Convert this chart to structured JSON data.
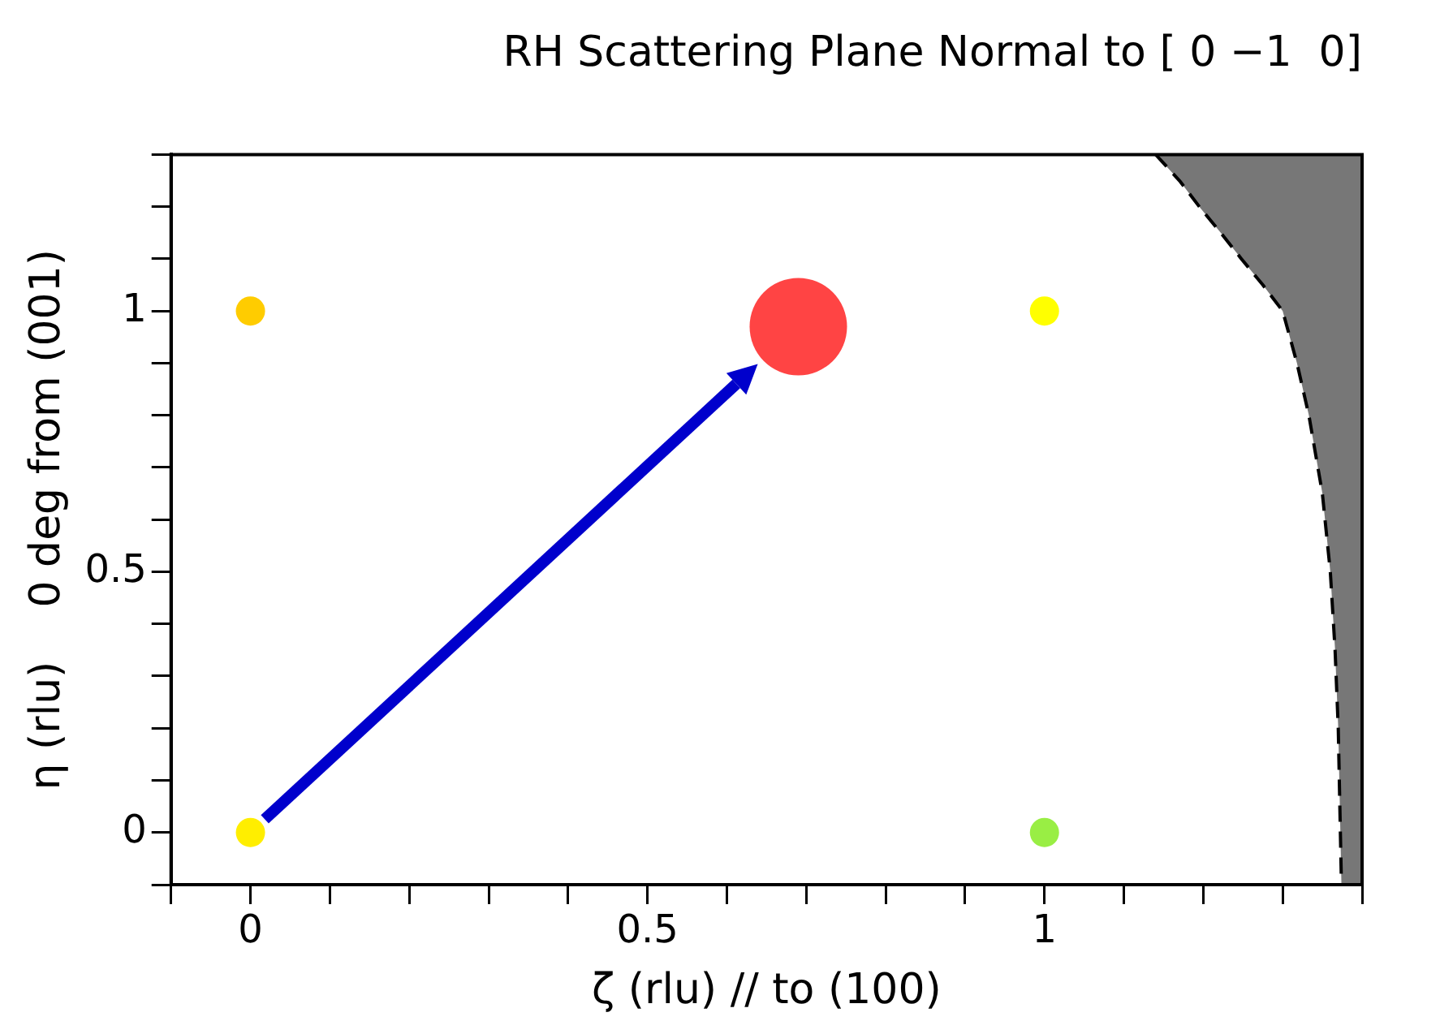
{
  "chart_data": {
    "type": "scatter",
    "title": "RH Scattering Plane Normal to [ 0 −1  0]",
    "xlabel": "ζ (rlu) // to (100)",
    "ylabel": "η (rlu)    0 deg from (001)",
    "xlim": [
      -0.1,
      1.4
    ],
    "ylim": [
      -0.1,
      1.3
    ],
    "xticks": [
      {
        "value": -0.1,
        "label": null
      },
      0,
      {
        "value": 0.1,
        "label": null
      },
      {
        "value": 0.2,
        "label": null
      },
      {
        "value": 0.3,
        "label": null
      },
      {
        "value": 0.4,
        "label": null
      },
      0.5,
      {
        "value": 0.6,
        "label": null
      },
      {
        "value": 0.7,
        "label": null
      },
      {
        "value": 0.8,
        "label": null
      },
      {
        "value": 0.9,
        "label": null
      },
      1,
      {
        "value": 1.1,
        "label": null
      },
      {
        "value": 1.2,
        "label": null
      },
      {
        "value": 1.3,
        "label": null
      },
      {
        "value": 1.4,
        "label": null
      }
    ],
    "yticks": [
      {
        "value": -0.1,
        "label": null
      },
      0,
      {
        "value": 0.1,
        "label": null
      },
      {
        "value": 0.2,
        "label": null
      },
      {
        "value": 0.3,
        "label": null
      },
      {
        "value": 0.4,
        "label": null
      },
      0.5,
      {
        "value": 0.6,
        "label": null
      },
      {
        "value": 0.7,
        "label": null
      },
      {
        "value": 0.8,
        "label": null
      },
      {
        "value": 0.9,
        "label": null
      },
      1,
      {
        "value": 1.1,
        "label": null
      },
      {
        "value": 1.2,
        "label": null
      },
      {
        "value": 1.3,
        "label": null
      }
    ],
    "grid": false,
    "legend": false,
    "series": [
      {
        "marker": "circle",
        "x": [
          0,
          0,
          1,
          1
        ],
        "values": [
          0,
          1,
          1,
          0
        ],
        "colors": [
          "#ffee00",
          "#ffcc00",
          "#ffff00",
          "#99ee44"
        ]
      },
      {
        "type": "bubble",
        "x": [
          0.69
        ],
        "values": [
          0.97
        ],
        "sizes": [
          1
        ],
        "color": "#ff4444"
      },
      {
        "type": "area",
        "marker": "none",
        "x": [
          1.14,
          1.17,
          1.195,
          1.222,
          1.248,
          1.275,
          1.3,
          1.318,
          1.333,
          1.35,
          1.36,
          1.366,
          1.37,
          1.374,
          1.4,
          1.4
        ],
        "values": [
          1.3,
          1.25,
          1.2,
          1.15,
          1.1,
          1.05,
          1.0,
          0.9,
          0.8,
          0.65,
          0.5,
          0.35,
          0.2,
          -0.1,
          -0.1,
          1.3
        ],
        "color": "#777777",
        "line_style": "dashed"
      }
    ]
  }
}
